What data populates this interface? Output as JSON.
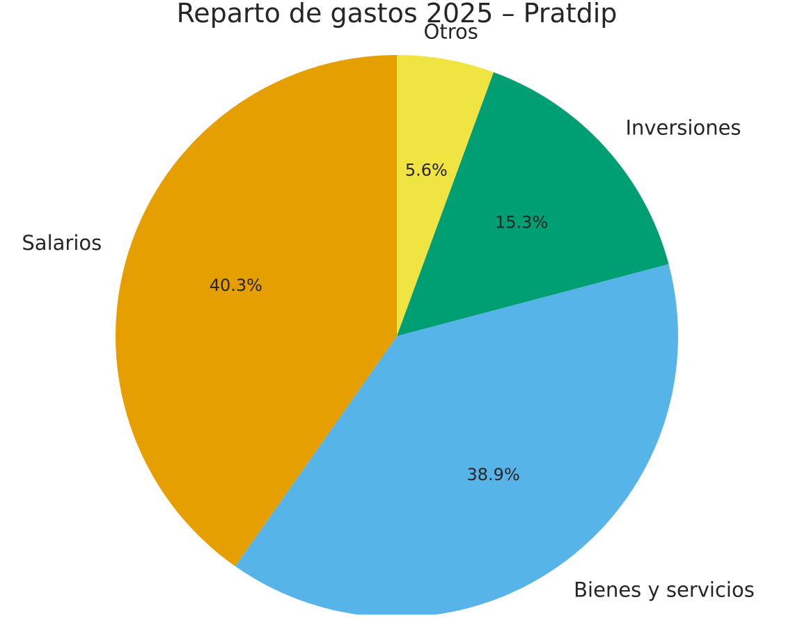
{
  "chart_data": {
    "type": "pie",
    "title": "Reparto de gastos 2025 – Pratdip",
    "slices": [
      {
        "label": "Otros",
        "value": 5.6,
        "pct_label": "5.6%",
        "color": "#F0E442"
      },
      {
        "label": "Inversiones",
        "value": 15.3,
        "pct_label": "15.3%",
        "color": "#009E73"
      },
      {
        "label": "Bienes y servicios",
        "value": 38.9,
        "pct_label": "38.9%",
        "color": "#56B4E9"
      },
      {
        "label": "Salarios",
        "value": 40.3,
        "pct_label": "40.3%",
        "color": "#E69F00"
      }
    ],
    "start_angle": "top",
    "direction": "clockwise"
  }
}
